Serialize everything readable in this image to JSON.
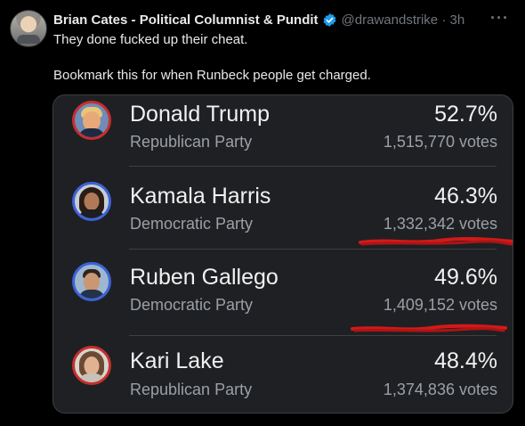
{
  "tweet": {
    "author_name": "Brian Cates - Political Columnist & Pundit",
    "handle_time": "@drawandstrike · 3h",
    "text": "They done fucked up their cheat.\n\nBookmark this for when Runbeck people get charged.",
    "more": "···"
  },
  "results": [
    {
      "name": "Donald Trump",
      "party": "Republican Party",
      "percent": "52.7%",
      "votes": "1,515,770 votes",
      "party_color": "#c62f2f"
    },
    {
      "name": "Kamala Harris",
      "party": "Democratic Party",
      "percent": "46.3%",
      "votes": "1,332,342 votes",
      "party_color": "#3d63d8"
    },
    {
      "name": "Ruben Gallego",
      "party": "Democratic Party",
      "percent": "49.6%",
      "votes": "1,409,152 votes",
      "party_color": "#3d63d8"
    },
    {
      "name": "Kari Lake",
      "party": "Republican Party",
      "percent": "48.4%",
      "votes": "1,374,836 votes",
      "party_color": "#c62f2f"
    }
  ],
  "colors": {
    "background": "#000000",
    "card": "#1f2023",
    "verified": "#1d9bf0",
    "annotation": "#d11a1a"
  }
}
